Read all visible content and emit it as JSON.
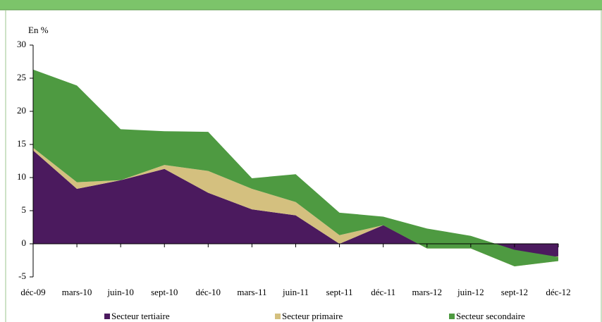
{
  "chart_data": {
    "type": "stacked-area",
    "y_label": "En %",
    "categories": [
      "déc-09",
      "mars-10",
      "juin-10",
      "sept-10",
      "déc-10",
      "mars-11",
      "juin-11",
      "sept-11",
      "déc-11",
      "mars-12",
      "juin-12",
      "sept-12",
      "déc-12"
    ],
    "series": [
      {
        "name": "Secteur tertiaire",
        "color": "#4b1a5e",
        "values": [
          14.1,
          8.3,
          9.6,
          11.3,
          7.7,
          5.2,
          4.3,
          0.0,
          2.8,
          -0.1,
          0.3,
          -2.1,
          -1.9
        ]
      },
      {
        "name": "Secteur primaire",
        "color": "#d4c07f",
        "values": [
          0.4,
          1.0,
          0.0,
          0.6,
          3.3,
          3.1,
          2.0,
          1.3,
          0.0,
          -0.6,
          -1.0,
          -1.3,
          -0.7
        ]
      },
      {
        "name": "Secteur secondaire",
        "color": "#4e9a41",
        "values": [
          11.8,
          14.6,
          7.7,
          5.1,
          5.9,
          1.6,
          4.2,
          3.4,
          1.3,
          3.0,
          1.9,
          2.5,
          0.6
        ]
      }
    ],
    "ylim": [
      -5,
      30
    ],
    "yticks": [
      -5,
      0,
      5,
      10,
      15,
      20,
      25,
      30
    ],
    "legend": "bottom"
  }
}
